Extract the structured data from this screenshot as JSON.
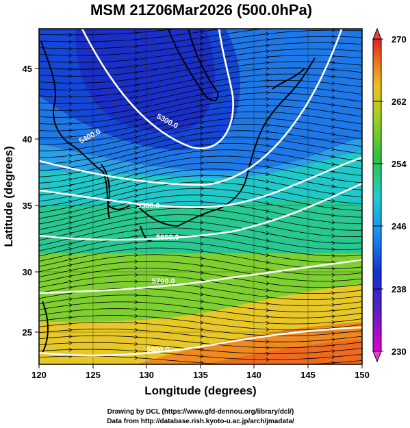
{
  "title": "MSM 21Z06Mar2026 (500.0hPa)",
  "x_axis": {
    "label": "Longitude (degrees)",
    "ticks": [
      "120",
      "125",
      "130",
      "135",
      "140",
      "145",
      "150"
    ]
  },
  "y_axis": {
    "label": "Latitude (degrees)",
    "ticks": [
      "25",
      "30",
      "35",
      "40",
      "45"
    ]
  },
  "colorbar": {
    "ticks": [
      "270",
      "262",
      "254",
      "246",
      "238",
      "230"
    ]
  },
  "contour_labels": [
    "5300.0",
    "5400.0",
    "5500.0",
    "5600.0",
    "5700.0",
    "5800.0"
  ],
  "credits": {
    "line1": "Drawing by DCL (https://www.gfd-dennou.org/library/dcl/)",
    "line2": "Data from http://database.rish.kyoto-u.ac.jp/arch/jmadata/"
  }
}
